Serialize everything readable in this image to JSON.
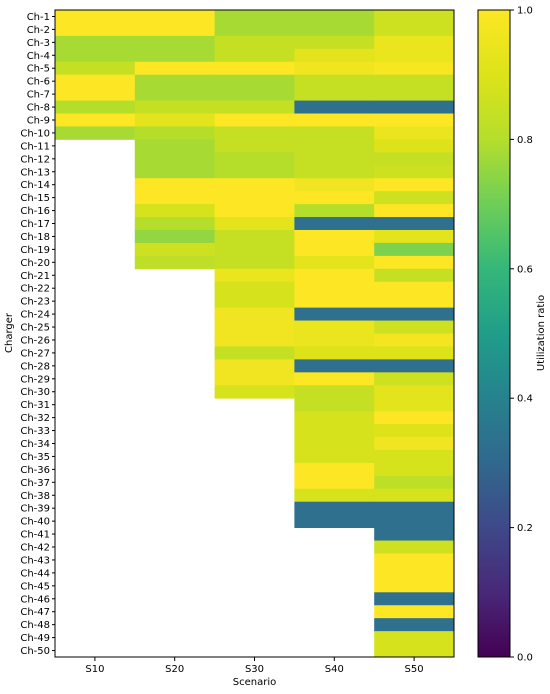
{
  "chart_data": {
    "type": "heatmap",
    "title": "",
    "xlabel": "Scenario",
    "ylabel": "Charger",
    "x_categories": [
      "S10",
      "S20",
      "S30",
      "S40",
      "S50"
    ],
    "y_categories": [
      "Ch-1",
      "Ch-2",
      "Ch-3",
      "Ch-4",
      "Ch-5",
      "Ch-6",
      "Ch-7",
      "Ch-8",
      "Ch-9",
      "Ch-10",
      "Ch-11",
      "Ch-12",
      "Ch-13",
      "Ch-14",
      "Ch-15",
      "Ch-16",
      "Ch-17",
      "Ch-18",
      "Ch-19",
      "Ch-20",
      "Ch-21",
      "Ch-22",
      "Ch-23",
      "Ch-24",
      "Ch-25",
      "Ch-26",
      "Ch-27",
      "Ch-28",
      "Ch-29",
      "Ch-30",
      "Ch-31",
      "Ch-32",
      "Ch-33",
      "Ch-34",
      "Ch-35",
      "Ch-36",
      "Ch-37",
      "Ch-38",
      "Ch-39",
      "Ch-40",
      "Ch-41",
      "Ch-42",
      "Ch-43",
      "Ch-44",
      "Ch-45",
      "Ch-46",
      "Ch-47",
      "Ch-48",
      "Ch-49",
      "Ch-50"
    ],
    "values": [
      [
        1.0,
        1.0,
        0.78,
        0.78,
        0.86
      ],
      [
        1.0,
        1.0,
        0.78,
        0.78,
        0.86
      ],
      [
        0.78,
        0.78,
        0.84,
        0.84,
        0.94
      ],
      [
        0.78,
        0.78,
        0.84,
        0.92,
        0.94
      ],
      [
        0.84,
        1.0,
        1.0,
        0.96,
        0.98
      ],
      [
        1.0,
        0.78,
        0.78,
        0.84,
        0.84
      ],
      [
        1.0,
        0.78,
        0.78,
        0.84,
        0.84
      ],
      [
        0.8,
        0.84,
        0.84,
        0.33,
        0.33
      ],
      [
        1.0,
        0.92,
        1.0,
        1.0,
        1.0
      ],
      [
        0.78,
        0.8,
        0.84,
        0.84,
        0.94
      ],
      [
        null,
        0.78,
        0.84,
        0.84,
        0.9
      ],
      [
        null,
        0.78,
        0.8,
        0.84,
        0.84
      ],
      [
        null,
        0.78,
        0.8,
        0.84,
        0.86
      ],
      [
        null,
        1.0,
        1.0,
        0.96,
        1.0
      ],
      [
        null,
        1.0,
        1.0,
        1.0,
        0.86
      ],
      [
        null,
        0.88,
        1.0,
        0.8,
        1.0
      ],
      [
        null,
        0.8,
        0.92,
        0.33,
        0.33
      ],
      [
        null,
        0.75,
        0.84,
        1.0,
        0.92
      ],
      [
        null,
        0.86,
        0.84,
        1.0,
        0.72
      ],
      [
        null,
        0.82,
        0.84,
        0.92,
        1.0
      ],
      [
        null,
        null,
        0.94,
        1.0,
        0.84
      ],
      [
        null,
        null,
        0.88,
        1.0,
        1.0
      ],
      [
        null,
        null,
        0.88,
        1.0,
        1.0
      ],
      [
        null,
        null,
        0.96,
        0.33,
        0.33
      ],
      [
        null,
        null,
        0.96,
        0.94,
        0.86
      ],
      [
        null,
        null,
        0.96,
        0.94,
        0.97
      ],
      [
        null,
        null,
        0.84,
        0.9,
        0.9
      ],
      [
        null,
        null,
        0.96,
        0.33,
        0.33
      ],
      [
        null,
        null,
        0.96,
        1.0,
        0.86
      ],
      [
        null,
        null,
        0.88,
        0.84,
        0.92
      ],
      [
        null,
        null,
        null,
        0.84,
        0.92
      ],
      [
        null,
        null,
        null,
        0.88,
        1.0
      ],
      [
        null,
        null,
        null,
        0.88,
        0.9
      ],
      [
        null,
        null,
        null,
        0.88,
        0.96
      ],
      [
        null,
        null,
        null,
        0.88,
        0.88
      ],
      [
        null,
        null,
        null,
        1.0,
        0.88
      ],
      [
        null,
        null,
        null,
        1.0,
        0.82
      ],
      [
        null,
        null,
        null,
        0.88,
        0.88
      ],
      [
        null,
        null,
        null,
        0.33,
        0.33
      ],
      [
        null,
        null,
        null,
        0.33,
        0.33
      ],
      [
        null,
        null,
        null,
        null,
        0.33
      ],
      [
        null,
        null,
        null,
        null,
        0.86
      ],
      [
        null,
        null,
        null,
        null,
        1.0
      ],
      [
        null,
        null,
        null,
        null,
        1.0
      ],
      [
        null,
        null,
        null,
        null,
        1.0
      ],
      [
        null,
        null,
        null,
        null,
        0.33
      ],
      [
        null,
        null,
        null,
        null,
        1.0
      ],
      [
        null,
        null,
        null,
        null,
        0.33
      ],
      [
        null,
        null,
        null,
        null,
        0.88
      ],
      [
        null,
        null,
        null,
        null,
        0.88
      ]
    ],
    "colorbar": {
      "label": "Utilization ratio",
      "min": 0.0,
      "max": 1.0,
      "ticks": [
        "0.0",
        "0.2",
        "0.4",
        "0.6",
        "0.8",
        "1.0"
      ],
      "colormap": "viridis"
    }
  }
}
